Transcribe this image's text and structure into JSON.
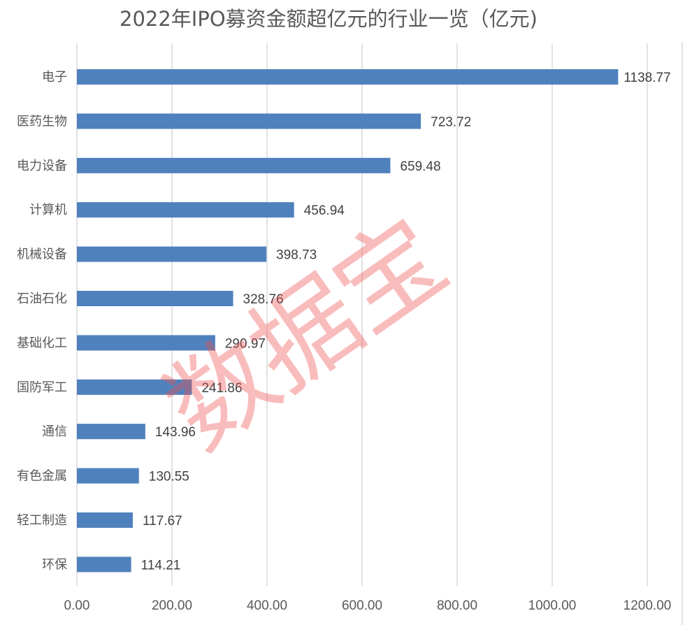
{
  "chart_data": {
    "type": "bar",
    "orientation": "horizontal",
    "title": "2022年IPO募资金额超亿元的行业一览（亿元)",
    "categories": [
      "电子",
      "医药生物",
      "电力设备",
      "计算机",
      "机械设备",
      "石油石化",
      "基础化工",
      "国防军工",
      "通信",
      "有色金属",
      "轻工制造",
      "环保"
    ],
    "values": [
      1138.77,
      723.72,
      659.48,
      456.94,
      398.73,
      328.76,
      290.97,
      241.86,
      143.96,
      130.55,
      117.67,
      114.21
    ],
    "value_labels": [
      "1138.77",
      "723.72",
      "659.48",
      "456.94",
      "398.73",
      "328.76",
      "290.97",
      "241.86",
      "143.96",
      "130.55",
      "117.67",
      "114.21"
    ],
    "xlim": [
      0,
      1200
    ],
    "xticks": [
      0,
      200,
      400,
      600,
      800,
      1000,
      1200
    ],
    "xtick_labels": [
      "0.00",
      "200.00",
      "400.00",
      "600.00",
      "800.00",
      "1000.00",
      "1200.00"
    ],
    "grid": true,
    "bar_color": "#4f81bd",
    "xlabel": "",
    "ylabel": ""
  },
  "watermark": "数据宝"
}
